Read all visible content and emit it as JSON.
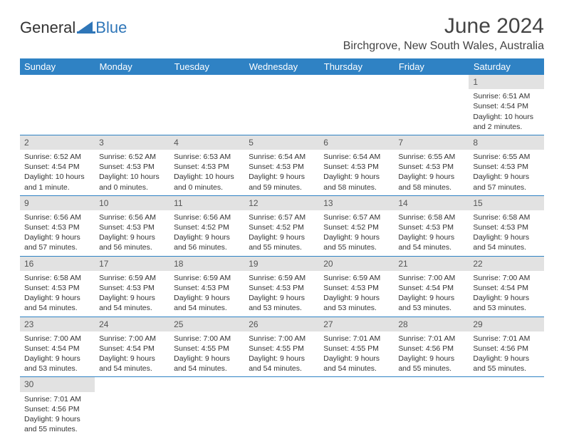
{
  "logo": {
    "general": "General",
    "blue": "Blue"
  },
  "title": "June 2024",
  "location": "Birchgrove, New South Wales, Australia",
  "colors": {
    "header_bg": "#2f82c4",
    "header_text": "#ffffff",
    "daynum_bg": "#e2e2e2",
    "border": "#2f82c4",
    "logo_blue": "#2f76b8"
  },
  "day_headers": [
    "Sunday",
    "Monday",
    "Tuesday",
    "Wednesday",
    "Thursday",
    "Friday",
    "Saturday"
  ],
  "weeks": [
    [
      null,
      null,
      null,
      null,
      null,
      null,
      {
        "n": "1",
        "sunrise": "Sunrise: 6:51 AM",
        "sunset": "Sunset: 4:54 PM",
        "daylight": "Daylight: 10 hours and 2 minutes."
      }
    ],
    [
      {
        "n": "2",
        "sunrise": "Sunrise: 6:52 AM",
        "sunset": "Sunset: 4:54 PM",
        "daylight": "Daylight: 10 hours and 1 minute."
      },
      {
        "n": "3",
        "sunrise": "Sunrise: 6:52 AM",
        "sunset": "Sunset: 4:53 PM",
        "daylight": "Daylight: 10 hours and 0 minutes."
      },
      {
        "n": "4",
        "sunrise": "Sunrise: 6:53 AM",
        "sunset": "Sunset: 4:53 PM",
        "daylight": "Daylight: 10 hours and 0 minutes."
      },
      {
        "n": "5",
        "sunrise": "Sunrise: 6:54 AM",
        "sunset": "Sunset: 4:53 PM",
        "daylight": "Daylight: 9 hours and 59 minutes."
      },
      {
        "n": "6",
        "sunrise": "Sunrise: 6:54 AM",
        "sunset": "Sunset: 4:53 PM",
        "daylight": "Daylight: 9 hours and 58 minutes."
      },
      {
        "n": "7",
        "sunrise": "Sunrise: 6:55 AM",
        "sunset": "Sunset: 4:53 PM",
        "daylight": "Daylight: 9 hours and 58 minutes."
      },
      {
        "n": "8",
        "sunrise": "Sunrise: 6:55 AM",
        "sunset": "Sunset: 4:53 PM",
        "daylight": "Daylight: 9 hours and 57 minutes."
      }
    ],
    [
      {
        "n": "9",
        "sunrise": "Sunrise: 6:56 AM",
        "sunset": "Sunset: 4:53 PM",
        "daylight": "Daylight: 9 hours and 57 minutes."
      },
      {
        "n": "10",
        "sunrise": "Sunrise: 6:56 AM",
        "sunset": "Sunset: 4:53 PM",
        "daylight": "Daylight: 9 hours and 56 minutes."
      },
      {
        "n": "11",
        "sunrise": "Sunrise: 6:56 AM",
        "sunset": "Sunset: 4:52 PM",
        "daylight": "Daylight: 9 hours and 56 minutes."
      },
      {
        "n": "12",
        "sunrise": "Sunrise: 6:57 AM",
        "sunset": "Sunset: 4:52 PM",
        "daylight": "Daylight: 9 hours and 55 minutes."
      },
      {
        "n": "13",
        "sunrise": "Sunrise: 6:57 AM",
        "sunset": "Sunset: 4:52 PM",
        "daylight": "Daylight: 9 hours and 55 minutes."
      },
      {
        "n": "14",
        "sunrise": "Sunrise: 6:58 AM",
        "sunset": "Sunset: 4:53 PM",
        "daylight": "Daylight: 9 hours and 54 minutes."
      },
      {
        "n": "15",
        "sunrise": "Sunrise: 6:58 AM",
        "sunset": "Sunset: 4:53 PM",
        "daylight": "Daylight: 9 hours and 54 minutes."
      }
    ],
    [
      {
        "n": "16",
        "sunrise": "Sunrise: 6:58 AM",
        "sunset": "Sunset: 4:53 PM",
        "daylight": "Daylight: 9 hours and 54 minutes."
      },
      {
        "n": "17",
        "sunrise": "Sunrise: 6:59 AM",
        "sunset": "Sunset: 4:53 PM",
        "daylight": "Daylight: 9 hours and 54 minutes."
      },
      {
        "n": "18",
        "sunrise": "Sunrise: 6:59 AM",
        "sunset": "Sunset: 4:53 PM",
        "daylight": "Daylight: 9 hours and 54 minutes."
      },
      {
        "n": "19",
        "sunrise": "Sunrise: 6:59 AM",
        "sunset": "Sunset: 4:53 PM",
        "daylight": "Daylight: 9 hours and 53 minutes."
      },
      {
        "n": "20",
        "sunrise": "Sunrise: 6:59 AM",
        "sunset": "Sunset: 4:53 PM",
        "daylight": "Daylight: 9 hours and 53 minutes."
      },
      {
        "n": "21",
        "sunrise": "Sunrise: 7:00 AM",
        "sunset": "Sunset: 4:54 PM",
        "daylight": "Daylight: 9 hours and 53 minutes."
      },
      {
        "n": "22",
        "sunrise": "Sunrise: 7:00 AM",
        "sunset": "Sunset: 4:54 PM",
        "daylight": "Daylight: 9 hours and 53 minutes."
      }
    ],
    [
      {
        "n": "23",
        "sunrise": "Sunrise: 7:00 AM",
        "sunset": "Sunset: 4:54 PM",
        "daylight": "Daylight: 9 hours and 53 minutes."
      },
      {
        "n": "24",
        "sunrise": "Sunrise: 7:00 AM",
        "sunset": "Sunset: 4:54 PM",
        "daylight": "Daylight: 9 hours and 54 minutes."
      },
      {
        "n": "25",
        "sunrise": "Sunrise: 7:00 AM",
        "sunset": "Sunset: 4:55 PM",
        "daylight": "Daylight: 9 hours and 54 minutes."
      },
      {
        "n": "26",
        "sunrise": "Sunrise: 7:00 AM",
        "sunset": "Sunset: 4:55 PM",
        "daylight": "Daylight: 9 hours and 54 minutes."
      },
      {
        "n": "27",
        "sunrise": "Sunrise: 7:01 AM",
        "sunset": "Sunset: 4:55 PM",
        "daylight": "Daylight: 9 hours and 54 minutes."
      },
      {
        "n": "28",
        "sunrise": "Sunrise: 7:01 AM",
        "sunset": "Sunset: 4:56 PM",
        "daylight": "Daylight: 9 hours and 55 minutes."
      },
      {
        "n": "29",
        "sunrise": "Sunrise: 7:01 AM",
        "sunset": "Sunset: 4:56 PM",
        "daylight": "Daylight: 9 hours and 55 minutes."
      }
    ],
    [
      {
        "n": "30",
        "sunrise": "Sunrise: 7:01 AM",
        "sunset": "Sunset: 4:56 PM",
        "daylight": "Daylight: 9 hours and 55 minutes."
      },
      null,
      null,
      null,
      null,
      null,
      null
    ]
  ]
}
